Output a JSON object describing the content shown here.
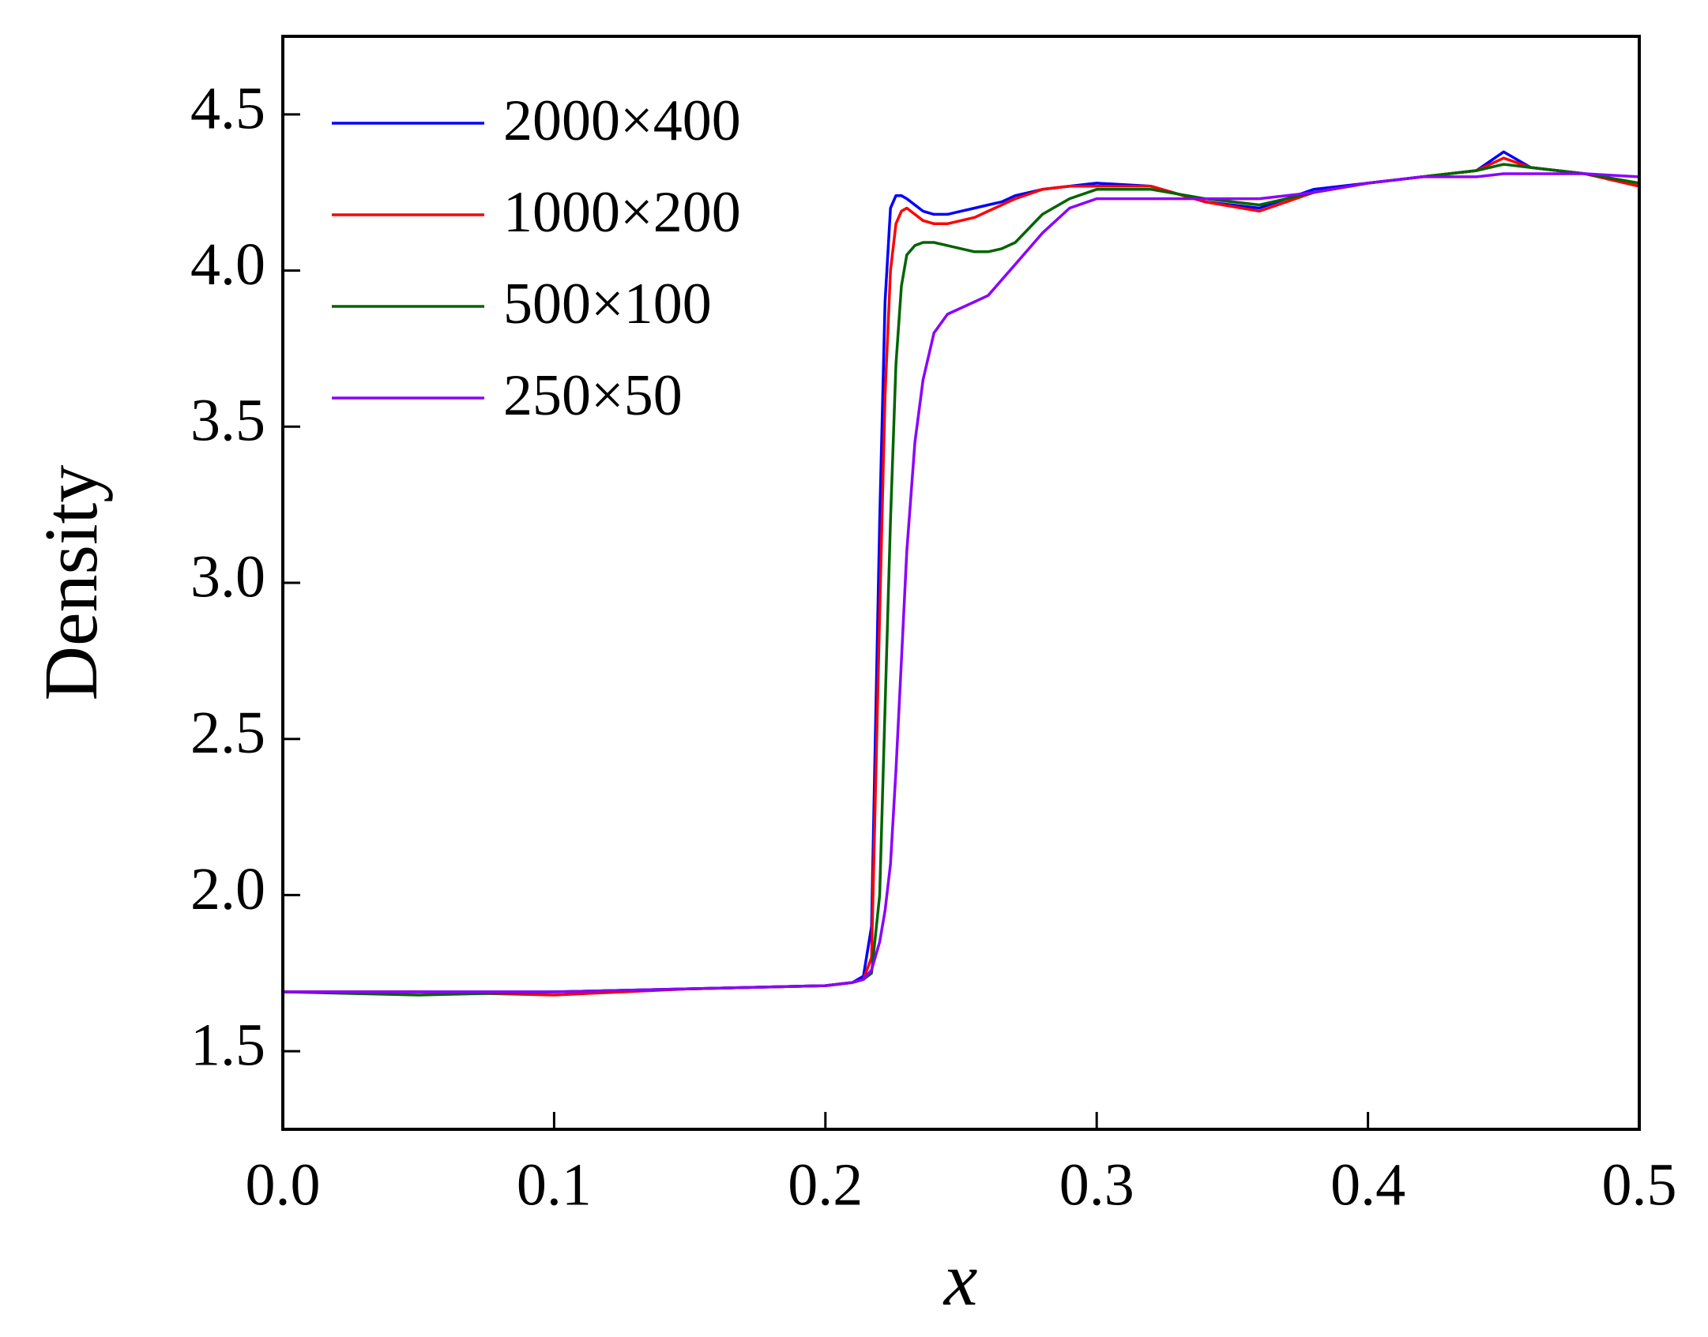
{
  "chart_data": {
    "type": "line",
    "xlabel": "x",
    "ylabel": "Density",
    "x": [
      0,
      0.05,
      0.1,
      0.15,
      0.2,
      0.21,
      0.214,
      0.217,
      0.22,
      0.222,
      0.224,
      0.226,
      0.228,
      0.23,
      0.233,
      0.236,
      0.24,
      0.245,
      0.25,
      0.255,
      0.26,
      0.265,
      0.27,
      0.28,
      0.29,
      0.3,
      0.32,
      0.34,
      0.36,
      0.38,
      0.4,
      0.42,
      0.44,
      0.45,
      0.46,
      0.48,
      0.5
    ],
    "series": [
      {
        "name": "2000×400",
        "color": "#0000ff",
        "values": [
          1.69,
          1.69,
          1.69,
          1.7,
          1.71,
          1.72,
          1.74,
          1.9,
          3.2,
          3.9,
          4.2,
          4.24,
          4.24,
          4.23,
          4.21,
          4.19,
          4.18,
          4.18,
          4.19,
          4.2,
          4.21,
          4.22,
          4.24,
          4.26,
          4.27,
          4.28,
          4.27,
          4.22,
          4.2,
          4.26,
          4.28,
          4.3,
          4.32,
          4.38,
          4.33,
          4.31,
          4.27
        ]
      },
      {
        "name": "1000×200",
        "color": "#ff0000",
        "values": [
          1.69,
          1.69,
          1.68,
          1.7,
          1.71,
          1.72,
          1.73,
          1.8,
          2.9,
          3.6,
          4.0,
          4.15,
          4.19,
          4.2,
          4.18,
          4.16,
          4.15,
          4.15,
          4.16,
          4.17,
          4.19,
          4.21,
          4.23,
          4.26,
          4.27,
          4.27,
          4.27,
          4.22,
          4.19,
          4.25,
          4.28,
          4.3,
          4.32,
          4.36,
          4.33,
          4.31,
          4.27
        ]
      },
      {
        "name": "500×100",
        "color": "#006400",
        "values": [
          1.69,
          1.68,
          1.69,
          1.7,
          1.71,
          1.72,
          1.73,
          1.75,
          2.0,
          2.6,
          3.2,
          3.7,
          3.95,
          4.05,
          4.08,
          4.09,
          4.09,
          4.08,
          4.07,
          4.06,
          4.06,
          4.07,
          4.09,
          4.18,
          4.23,
          4.26,
          4.26,
          4.23,
          4.21,
          4.25,
          4.28,
          4.3,
          4.32,
          4.34,
          4.33,
          4.31,
          4.28
        ]
      },
      {
        "name": "250×50",
        "color": "#8b00ff",
        "values": [
          1.69,
          1.69,
          1.69,
          1.7,
          1.71,
          1.72,
          1.73,
          1.76,
          1.85,
          1.95,
          2.1,
          2.4,
          2.75,
          3.1,
          3.45,
          3.65,
          3.8,
          3.86,
          3.88,
          3.9,
          3.92,
          3.97,
          4.02,
          4.12,
          4.2,
          4.23,
          4.23,
          4.23,
          4.23,
          4.25,
          4.28,
          4.3,
          4.3,
          4.31,
          4.31,
          4.31,
          4.3
        ]
      }
    ],
    "xlim": [
      0,
      0.5
    ],
    "xticks": [
      {
        "value": 0,
        "label": "0.0"
      },
      0.1,
      0.2,
      0.3,
      0.4,
      0.5
    ],
    "ylim": [
      1.25,
      4.75
    ],
    "yticks": [
      1.5,
      {
        "value": 2,
        "label": "2.0"
      },
      2.5,
      {
        "value": 3,
        "label": "3.0"
      },
      3.5,
      {
        "value": 4,
        "label": "4.0"
      },
      4.5
    ],
    "legend": "upper left",
    "grid": false
  }
}
